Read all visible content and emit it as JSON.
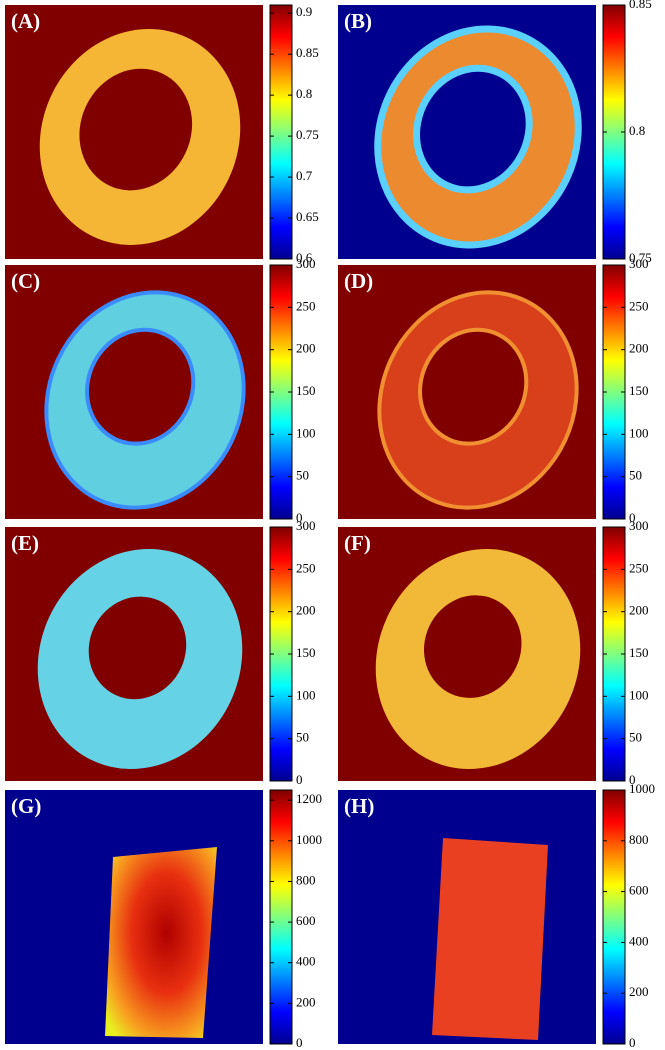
{
  "chart_data": [
    {
      "type": "heatmap",
      "title": "(A)",
      "background": "#800000",
      "ylim": [
        0.6,
        0.91
      ],
      "yticks": [
        0.6,
        0.65,
        0.7,
        0.75,
        0.8,
        0.85,
        0.9
      ]
    },
    {
      "type": "heatmap",
      "title": "(B)",
      "background": "#00008f",
      "ylim": [
        0.75,
        0.85
      ],
      "yticks": [
        0.75,
        0.8,
        0.85
      ]
    },
    {
      "type": "heatmap",
      "title": "(C)",
      "background": "#800000",
      "ylim": [
        0,
        300
      ],
      "yticks": [
        0,
        50,
        100,
        150,
        200,
        250,
        300
      ]
    },
    {
      "type": "heatmap",
      "title": "(D)",
      "background": "#800000",
      "ylim": [
        0,
        300
      ],
      "yticks": [
        0,
        50,
        100,
        150,
        200,
        250,
        300
      ]
    },
    {
      "type": "heatmap",
      "title": "(E)",
      "background": "#800000",
      "ylim": [
        0,
        300
      ],
      "yticks": [
        0,
        50,
        100,
        150,
        200,
        250,
        300
      ]
    },
    {
      "type": "heatmap",
      "title": "(F)",
      "background": "#800000",
      "ylim": [
        0,
        300
      ],
      "yticks": [
        0,
        50,
        100,
        150,
        200,
        250,
        300
      ]
    },
    {
      "type": "heatmap",
      "title": "(G)",
      "background": "#00008f",
      "ylim": [
        0,
        1250
      ],
      "yticks": [
        0,
        200,
        400,
        600,
        800,
        1000,
        1200
      ]
    },
    {
      "type": "heatmap",
      "title": "(H)",
      "background": "#00008f",
      "ylim": [
        0,
        1000
      ],
      "yticks": [
        0,
        200,
        400,
        600,
        800,
        1000
      ]
    }
  ]
}
